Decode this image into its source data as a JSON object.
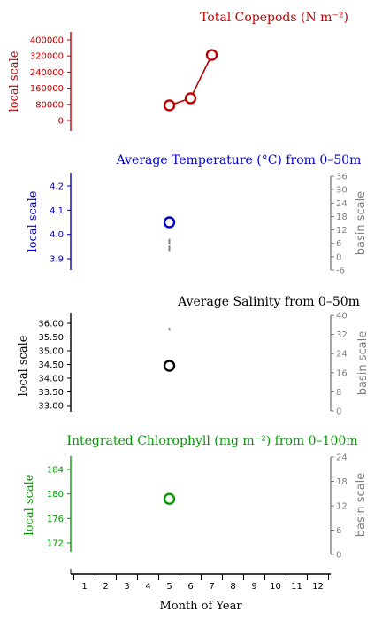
{
  "x_axis": {
    "label": "Month of Year",
    "ticks": [
      1,
      2,
      3,
      4,
      5,
      6,
      7,
      8,
      9,
      10,
      11,
      12
    ]
  },
  "chart_data": [
    {
      "type": "line",
      "title": "Total Copepods (N m⁻²)",
      "color": "#c00000",
      "ylabel": "local scale",
      "ylim": [
        -20000,
        420000
      ],
      "yticks": [
        "400000",
        "320000",
        "240000",
        "160000",
        "80000",
        "0"
      ],
      "ytick_values": [
        400000,
        320000,
        240000,
        160000,
        80000,
        0
      ],
      "series": [
        {
          "x": [
            5,
            6,
            7
          ],
          "y": [
            75000,
            110000,
            325000
          ]
        }
      ]
    },
    {
      "type": "scatter",
      "title": "Average Temperature (°C) from 0–50m",
      "color": "#0000cc",
      "ylabel": "local scale",
      "right_label": "basin scale",
      "ylim": [
        3.85,
        4.25
      ],
      "yticks": [
        "4.2",
        "4.1",
        "4.0",
        "3.9"
      ],
      "ytick_values": [
        4.2,
        4.1,
        4.0,
        3.9
      ],
      "right_ylim": [
        -6,
        36
      ],
      "right_ticks": [
        "36",
        "30",
        "24",
        "18",
        "12",
        "6",
        "0",
        "-6"
      ],
      "right_tick_values": [
        36,
        30,
        24,
        18,
        12,
        6,
        0,
        -6
      ],
      "series": [
        {
          "x": [
            5
          ],
          "y": [
            4.05
          ]
        }
      ],
      "basin_marks": [
        {
          "x": 5,
          "y": [
            5.5,
            8.0
          ]
        },
        {
          "x": 5,
          "y": [
            2.5,
            5.0
          ]
        }
      ]
    },
    {
      "type": "scatter",
      "title": "Average Salinity from 0–50m",
      "color": "#000000",
      "ylabel": "local scale",
      "right_label": "basin scale",
      "ylim": [
        32.75,
        36.25
      ],
      "yticks": [
        "36.00",
        "35.50",
        "35.00",
        "34.50",
        "34.00",
        "33.50",
        "33.00"
      ],
      "ytick_values": [
        36.0,
        35.5,
        35.0,
        34.5,
        34.0,
        33.5,
        33.0
      ],
      "right_ylim": [
        0,
        40
      ],
      "right_ticks": [
        "40",
        "32",
        "24",
        "16",
        "8",
        "0"
      ],
      "right_tick_values": [
        40,
        32,
        24,
        16,
        8,
        0
      ],
      "series": [
        {
          "x": [
            5
          ],
          "y": [
            34.45
          ]
        }
      ],
      "basin_marks": [
        {
          "x": 5,
          "y": [
            33.6,
            34.8
          ]
        }
      ]
    },
    {
      "type": "scatter",
      "title": "Integrated Chlorophyll (mg m⁻²) from 0–100m",
      "color": "#009900",
      "ylabel": "local scale",
      "right_label": "basin scale",
      "ylim": [
        170.5,
        186
      ],
      "yticks": [
        "184",
        "180",
        "176",
        "172"
      ],
      "ytick_values": [
        184,
        180,
        176,
        172
      ],
      "right_ylim": [
        0,
        24
      ],
      "right_ticks": [
        "24",
        "18",
        "12",
        "6",
        "0"
      ],
      "right_tick_values": [
        24,
        18,
        12,
        6,
        0
      ],
      "series": [
        {
          "x": [
            5
          ],
          "y": [
            179.2
          ]
        }
      ]
    }
  ]
}
